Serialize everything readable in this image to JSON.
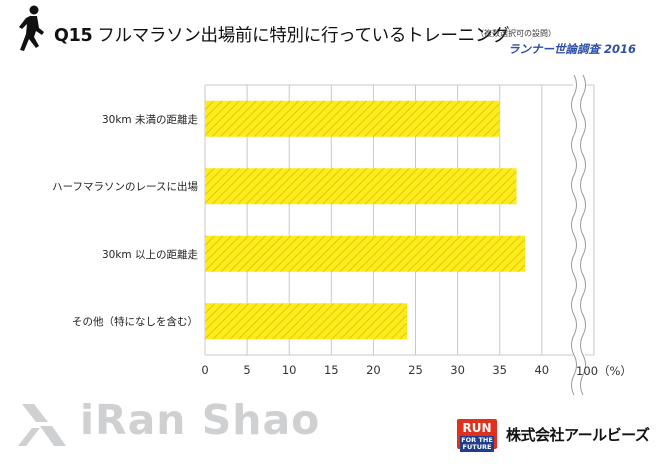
{
  "header": {
    "question_no": "Q15",
    "title": "フルマラソン出場前に特別に行っているトレーニング",
    "note": "（複数選択可の設問）",
    "survey": "ランナー世論調査 2016"
  },
  "footer": {
    "watermark": "iRan Shao",
    "badge_line1": "RUN",
    "badge_line2": "FOR THE FUTURE",
    "company": "株式会社アールビーズ"
  },
  "colors": {
    "bar_fill": "#fcec1c",
    "bar_stripe": "#e6c40c",
    "grid": "#c9c9c9",
    "title_accent": "#2d4fa8"
  },
  "chart_data": {
    "type": "bar",
    "orientation": "horizontal",
    "categories": [
      "30km 未満の距離走",
      "ハーフマラソンのレースに出場",
      "30km 以上の距離走",
      "その他（特になしを含む）"
    ],
    "values": [
      35,
      37,
      38,
      24
    ],
    "x_ticks": [
      "0",
      "5",
      "10",
      "15",
      "20",
      "25",
      "30",
      "35",
      "40",
      "100（%）"
    ],
    "xlim": [
      0,
      40
    ],
    "axis_break": true,
    "unit": "%",
    "grid": true
  }
}
